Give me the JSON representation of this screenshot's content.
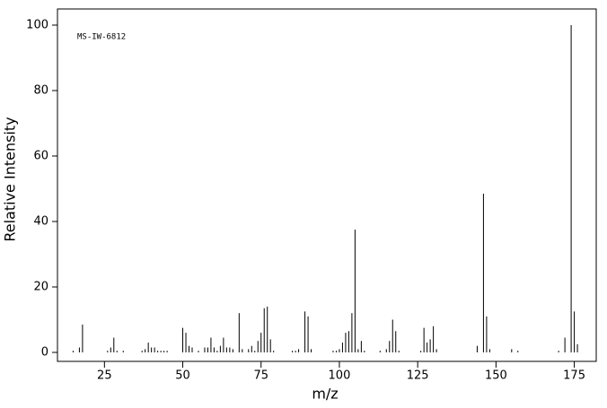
{
  "chart_data": {
    "type": "stem",
    "annotation": "MS-IW-6812",
    "x_label": "m/z",
    "y_label": "Relative Intensity",
    "x": [
      15,
      17,
      18,
      26,
      27,
      28,
      29,
      31,
      37,
      38,
      39,
      40,
      41,
      42,
      43,
      44,
      45,
      50,
      51,
      52,
      53,
      55,
      57,
      58,
      59,
      60,
      61,
      62,
      63,
      64,
      65,
      66,
      68,
      69,
      71,
      72,
      73,
      74,
      75,
      76,
      77,
      78,
      79,
      85,
      86,
      87,
      89,
      90,
      91,
      98,
      99,
      100,
      101,
      102,
      103,
      104,
      105,
      106,
      107,
      108,
      113,
      115,
      116,
      117,
      118,
      119,
      126,
      127,
      128,
      129,
      130,
      131,
      144,
      146,
      147,
      148,
      155,
      157,
      170,
      172,
      174,
      175,
      176
    ],
    "values": [
      0.5,
      1.5,
      8.5,
      0.5,
      1.5,
      4.5,
      0.5,
      0.5,
      0.5,
      1,
      3,
      1.5,
      1.5,
      0.5,
      0.5,
      0.5,
      0.5,
      7.5,
      6,
      2,
      1.5,
      0.5,
      1.5,
      1.5,
      4.5,
      1.5,
      0.5,
      2,
      4.5,
      1.5,
      1.5,
      1,
      12,
      1,
      1,
      2,
      0.5,
      3.5,
      6,
      13.5,
      14,
      4,
      0.5,
      0.5,
      0.5,
      1,
      12.5,
      11,
      1,
      0.5,
      0.5,
      1,
      3,
      6,
      6.5,
      12,
      37.5,
      1,
      3.5,
      0.5,
      0.5,
      1,
      3.5,
      10,
      6.5,
      0.5,
      0.5,
      7.5,
      3,
      4,
      8,
      1,
      2,
      48.5,
      11,
      1,
      1,
      0.5,
      0.5,
      4.5,
      100,
      12.5,
      2.5
    ],
    "color": "#000000",
    "xlim": [
      10,
      182
    ],
    "ylim": [
      0,
      100
    ],
    "xticks": [
      25,
      50,
      75,
      100,
      125,
      150,
      175
    ],
    "yticks": [
      0,
      20,
      40,
      60,
      80,
      100
    ]
  }
}
